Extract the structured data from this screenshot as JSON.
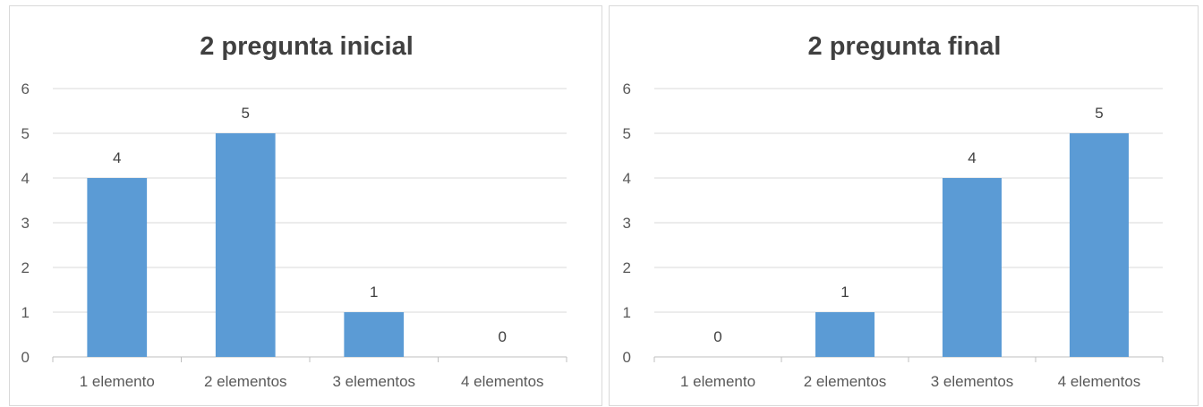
{
  "chart_data": [
    {
      "type": "bar",
      "title": "2 pregunta inicial",
      "categories": [
        "1 elemento",
        "2 elementos",
        "3 elementos",
        "4 elementos"
      ],
      "values": [
        4,
        5,
        1,
        0
      ],
      "ylim": [
        0,
        6
      ],
      "yticks": [
        0,
        1,
        2,
        3,
        4,
        5,
        6
      ],
      "grid": true,
      "legend": "none",
      "bar_color": "#5b9bd5"
    },
    {
      "type": "bar",
      "title": "2 pregunta final",
      "categories": [
        "1 elemento",
        "2 elementos",
        "3 elementos",
        "4 elementos"
      ],
      "values": [
        0,
        1,
        4,
        5
      ],
      "ylim": [
        0,
        6
      ],
      "yticks": [
        0,
        1,
        2,
        3,
        4,
        5,
        6
      ],
      "grid": true,
      "legend": "none",
      "bar_color": "#5b9bd5"
    }
  ]
}
